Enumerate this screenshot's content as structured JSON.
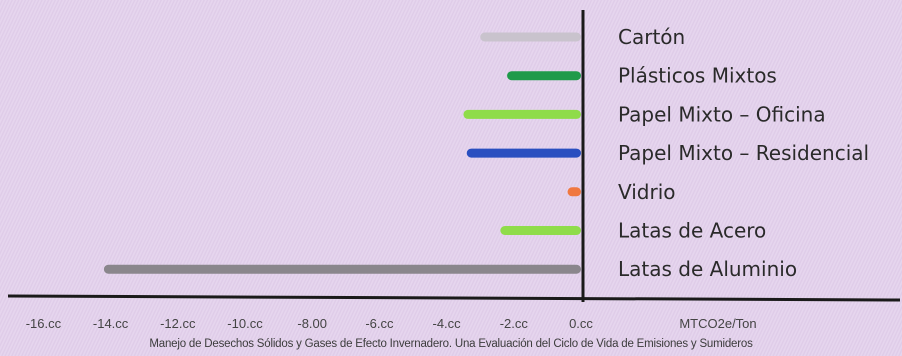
{
  "chart_data": {
    "type": "bar",
    "orientation": "horizontal",
    "categories": [
      "Cartón",
      "Plásticos Mixtos",
      "Papel Mixto – Oficina",
      "Papel Mixto – Residencial",
      "Vidrio",
      "Latas de Acero",
      "Latas de Aluminio"
    ],
    "values": [
      -3.0,
      -2.2,
      -3.5,
      -3.4,
      -0.4,
      -2.4,
      -14.2
    ],
    "colors": [
      "#c9c3cd",
      "#1f9a4a",
      "#8fdc4a",
      "#2a4fc0",
      "#f07840",
      "#8fdc4a",
      "#8a868c"
    ],
    "xlim": [
      -16,
      0
    ],
    "x_ticks": [
      -16,
      -14,
      -12,
      -10,
      -8,
      -6,
      -4,
      -2,
      0
    ],
    "x_tick_labels": [
      "-16.cc",
      "-14.cc",
      "-12.cc",
      "-10.cc",
      "-8.00",
      "-6.cc",
      "-4.cc",
      "-2.cc",
      "0.cc"
    ],
    "xlabel": "MTCO2e/Ton",
    "title": "",
    "caption": "Manejo de Desechos Sólidos y Gases de Efecto Invernadero. Una Evaluación del Ciclo de Vida de Emisiones y Sumideros",
    "legend": "none",
    "grid": false
  }
}
